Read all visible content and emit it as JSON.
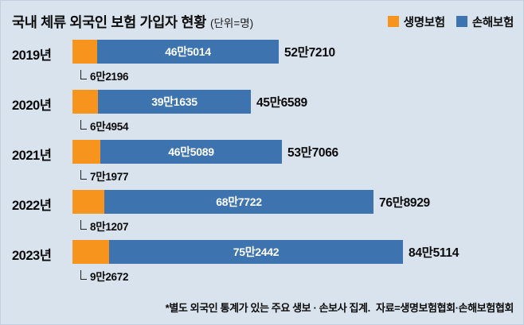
{
  "header": {
    "title": "국내 체류 외국인 보험 가입자 현황",
    "unit": "(단위=명)",
    "legend": [
      {
        "label": "생명보험",
        "color": "#f7941e"
      },
      {
        "label": "손해보험",
        "color": "#3d74b0"
      }
    ]
  },
  "chart_data": {
    "type": "bar",
    "orientation": "horizontal",
    "stacked": true,
    "title": "국내 체류 외국인 보험 가입자 현황 (단위=명)",
    "categories": [
      "2019년",
      "2020년",
      "2021년",
      "2022년",
      "2023년"
    ],
    "series": [
      {
        "name": "생명보험",
        "color": "#f7941e",
        "values": [
          62196,
          64954,
          71977,
          81207,
          92672
        ],
        "value_labels": [
          "6만2196",
          "6만4954",
          "7만1977",
          "8만1207",
          "9만2672"
        ]
      },
      {
        "name": "손해보험",
        "color": "#3d74b0",
        "values": [
          465014,
          391635,
          465089,
          687722,
          752442
        ],
        "value_labels": [
          "46만5014",
          "39만1635",
          "46만5089",
          "68만7722",
          "75만2442"
        ]
      }
    ],
    "totals": [
      527210,
      456589,
      537066,
      768929,
      845114
    ],
    "total_labels": [
      "52만7210",
      "45만6589",
      "53만7066",
      "76만8929",
      "84만5114"
    ],
    "xlim": [
      0,
      845114
    ],
    "legend_position": "top-right",
    "grid": false
  },
  "footnote": {
    "note": "*별도 외국인 통계가 있는 주요 생보 · 손보사 집계.",
    "source": "자료=생명보험협회·손해보험협회"
  }
}
